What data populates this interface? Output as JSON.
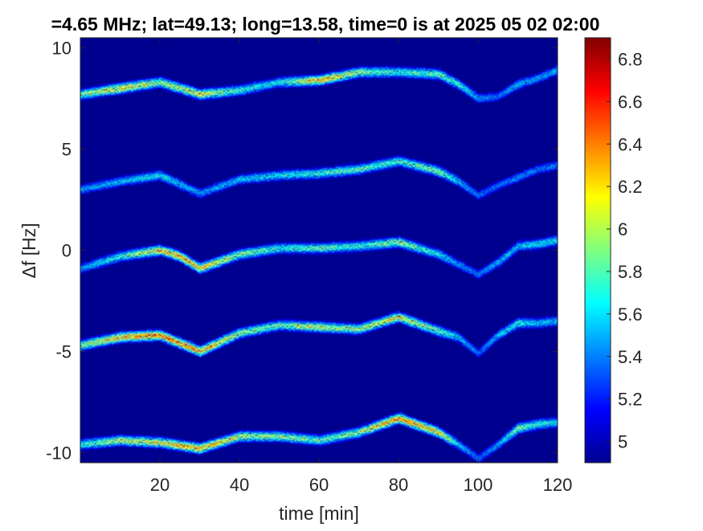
{
  "chart_data": {
    "type": "heatmap",
    "title": "=4.65 MHz;  lat=49.13; long=13.58, time=0 is at 2025 05 02 02:00",
    "xlabel": "time [min]",
    "ylabel": "Δf [Hz]",
    "xlim": [
      0,
      120
    ],
    "ylim": [
      -10.5,
      10.5
    ],
    "x_ticks": [
      20,
      40,
      60,
      80,
      100,
      120
    ],
    "y_ticks": [
      10,
      5,
      0,
      -5,
      -10
    ],
    "colorbar": {
      "clim": [
        4.9,
        6.9
      ],
      "ticks": [
        5,
        5.2,
        5.4,
        5.6,
        5.8,
        6,
        6.2,
        6.4,
        6.6,
        6.8
      ],
      "colormap": "jet"
    },
    "background_color": "#00008f",
    "grid": false,
    "traces": [
      {
        "name": "",
        "points": [
          [
            0,
            7.7
          ],
          [
            10,
            8.0
          ],
          [
            20,
            8.3
          ],
          [
            30,
            7.7
          ],
          [
            40,
            7.9
          ],
          [
            50,
            8.3
          ],
          [
            60,
            8.4
          ],
          [
            70,
            8.8
          ],
          [
            80,
            8.8
          ],
          [
            90,
            8.7
          ],
          [
            95,
            8.2
          ],
          [
            100,
            7.5
          ],
          [
            105,
            7.6
          ],
          [
            110,
            8.2
          ],
          [
            115,
            8.5
          ],
          [
            120,
            8.9
          ]
        ],
        "intensity": [
          5.9,
          6.3,
          6.0,
          6.2,
          5.8,
          5.7,
          6.4,
          6.0,
          5.8,
          5.9,
          5.8,
          5.5,
          5.4,
          5.6,
          5.5,
          5.6
        ]
      },
      {
        "name": "",
        "points": [
          [
            0,
            3.0
          ],
          [
            10,
            3.4
          ],
          [
            20,
            3.7
          ],
          [
            30,
            2.8
          ],
          [
            40,
            3.5
          ],
          [
            50,
            3.7
          ],
          [
            60,
            3.8
          ],
          [
            70,
            4.0
          ],
          [
            80,
            4.4
          ],
          [
            90,
            3.9
          ],
          [
            95,
            3.4
          ],
          [
            100,
            2.7
          ],
          [
            105,
            3.2
          ],
          [
            110,
            3.6
          ],
          [
            115,
            4.0
          ],
          [
            120,
            4.2
          ]
        ],
        "intensity": [
          5.5,
          5.6,
          5.7,
          5.5,
          5.6,
          5.7,
          5.8,
          5.9,
          5.8,
          6.0,
          5.6,
          5.4,
          5.4,
          5.5,
          5.4,
          5.5
        ]
      },
      {
        "name": "",
        "points": [
          [
            0,
            -0.9
          ],
          [
            10,
            -0.3
          ],
          [
            20,
            0.0
          ],
          [
            25,
            -0.3
          ],
          [
            30,
            -0.9
          ],
          [
            40,
            -0.2
          ],
          [
            50,
            0.1
          ],
          [
            60,
            0.1
          ],
          [
            70,
            0.2
          ],
          [
            80,
            0.4
          ],
          [
            90,
            -0.2
          ],
          [
            95,
            -0.7
          ],
          [
            100,
            -1.2
          ],
          [
            105,
            -0.6
          ],
          [
            110,
            0.2
          ],
          [
            115,
            0.3
          ],
          [
            120,
            0.5
          ]
        ],
        "intensity": [
          5.5,
          5.8,
          6.3,
          6.4,
          6.3,
          6.0,
          5.8,
          5.9,
          5.8,
          6.0,
          5.7,
          5.5,
          5.4,
          5.6,
          5.6,
          5.7,
          5.7
        ]
      },
      {
        "name": "",
        "points": [
          [
            0,
            -4.7
          ],
          [
            10,
            -4.3
          ],
          [
            20,
            -4.2
          ],
          [
            30,
            -5.0
          ],
          [
            40,
            -4.1
          ],
          [
            50,
            -3.7
          ],
          [
            60,
            -3.8
          ],
          [
            70,
            -3.9
          ],
          [
            80,
            -3.3
          ],
          [
            90,
            -4.0
          ],
          [
            95,
            -4.3
          ],
          [
            100,
            -5.1
          ],
          [
            105,
            -4.2
          ],
          [
            110,
            -3.6
          ],
          [
            115,
            -3.6
          ],
          [
            120,
            -3.5
          ]
        ],
        "intensity": [
          6.0,
          6.3,
          6.5,
          6.4,
          6.0,
          5.9,
          6.1,
          6.0,
          6.2,
          5.9,
          5.6,
          5.4,
          5.6,
          5.8,
          5.6,
          5.6
        ]
      },
      {
        "name": "",
        "points": [
          [
            0,
            -9.6
          ],
          [
            10,
            -9.4
          ],
          [
            20,
            -9.5
          ],
          [
            30,
            -9.8
          ],
          [
            40,
            -9.2
          ],
          [
            50,
            -9.2
          ],
          [
            60,
            -9.4
          ],
          [
            70,
            -9.0
          ],
          [
            80,
            -8.3
          ],
          [
            90,
            -9.0
          ],
          [
            95,
            -9.6
          ],
          [
            100,
            -10.3
          ],
          [
            105,
            -9.6
          ],
          [
            110,
            -8.8
          ],
          [
            115,
            -8.6
          ],
          [
            120,
            -8.5
          ]
        ],
        "intensity": [
          5.8,
          6.1,
          6.2,
          6.4,
          6.1,
          6.0,
          5.9,
          6.0,
          6.5,
          6.3,
          5.6,
          5.4,
          5.5,
          6.0,
          5.8,
          5.7
        ]
      }
    ]
  }
}
